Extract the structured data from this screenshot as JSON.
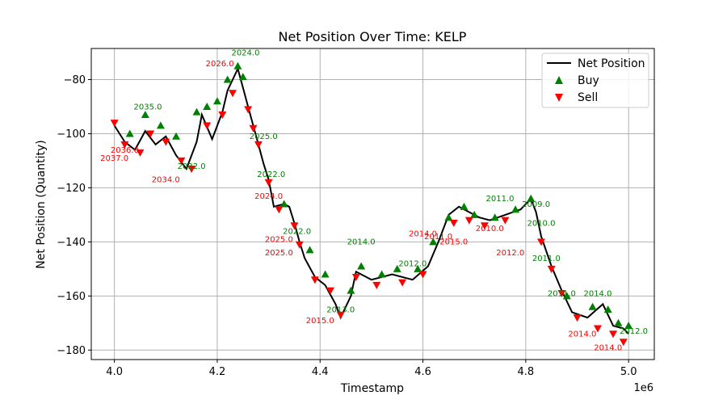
{
  "chart_data": {
    "type": "line",
    "title": "Net Position Over Time: KELP",
    "xlabel": "Timestamp",
    "ylabel": "Net Position (Quantity)",
    "x_offset_label": "1e6",
    "xlim": [
      3.955,
      5.05
    ],
    "ylim": [
      -183.5,
      -68.5
    ],
    "x_unit_scale": 1000000,
    "xticks": [
      4.0,
      4.2,
      4.4,
      4.6,
      4.8,
      5.0
    ],
    "xtick_labels": [
      "4.0",
      "4.2",
      "4.4",
      "4.6",
      "4.8",
      "5.0"
    ],
    "yticks": [
      -80,
      -100,
      -120,
      -140,
      -160,
      -180
    ],
    "ytick_labels": [
      "−80",
      "−100",
      "−120",
      "−140",
      "−160",
      "−180"
    ],
    "grid": true,
    "legend_position": "top-right",
    "colors": {
      "net_position": "#000000",
      "buy": "#008000",
      "sell": "#ff0000"
    },
    "series": [
      {
        "name": "Net Position",
        "kind": "line",
        "points": [
          [
            4.0,
            -97
          ],
          [
            4.02,
            -103
          ],
          [
            4.04,
            -106
          ],
          [
            4.06,
            -99
          ],
          [
            4.08,
            -104
          ],
          [
            4.1,
            -101
          ],
          [
            4.12,
            -108
          ],
          [
            4.14,
            -113
          ],
          [
            4.16,
            -103
          ],
          [
            4.17,
            -93
          ],
          [
            4.19,
            -102
          ],
          [
            4.21,
            -92
          ],
          [
            4.22,
            -84
          ],
          [
            4.24,
            -76
          ],
          [
            4.25,
            -83
          ],
          [
            4.26,
            -90
          ],
          [
            4.27,
            -97
          ],
          [
            4.28,
            -104
          ],
          [
            4.29,
            -111
          ],
          [
            4.3,
            -117
          ],
          [
            4.31,
            -127
          ],
          [
            4.33,
            -126
          ],
          [
            4.34,
            -127
          ],
          [
            4.35,
            -133
          ],
          [
            4.36,
            -140
          ],
          [
            4.37,
            -146
          ],
          [
            4.39,
            -153
          ],
          [
            4.41,
            -156
          ],
          [
            4.43,
            -163
          ],
          [
            4.44,
            -168
          ],
          [
            4.46,
            -160
          ],
          [
            4.47,
            -151
          ],
          [
            4.5,
            -154
          ],
          [
            4.54,
            -152
          ],
          [
            4.58,
            -154
          ],
          [
            4.61,
            -149
          ],
          [
            4.63,
            -140
          ],
          [
            4.65,
            -130
          ],
          [
            4.67,
            -127
          ],
          [
            4.69,
            -129
          ],
          [
            4.71,
            -131
          ],
          [
            4.73,
            -132
          ],
          [
            4.76,
            -130
          ],
          [
            4.79,
            -128
          ],
          [
            4.81,
            -124
          ],
          [
            4.82,
            -129
          ],
          [
            4.83,
            -138
          ],
          [
            4.85,
            -149
          ],
          [
            4.87,
            -158
          ],
          [
            4.89,
            -166
          ],
          [
            4.92,
            -168
          ],
          [
            4.95,
            -163
          ],
          [
            4.97,
            -171
          ],
          [
            4.99,
            -172
          ],
          [
            5.0,
            -174
          ]
        ]
      },
      {
        "name": "Buy",
        "kind": "marker",
        "marker": "triangle-up",
        "points": [
          [
            4.03,
            -100
          ],
          [
            4.06,
            -93
          ],
          [
            4.09,
            -97
          ],
          [
            4.12,
            -101
          ],
          [
            4.16,
            -92
          ],
          [
            4.18,
            -90
          ],
          [
            4.2,
            -88
          ],
          [
            4.22,
            -80
          ],
          [
            4.24,
            -75
          ],
          [
            4.25,
            -79
          ],
          [
            4.33,
            -126
          ],
          [
            4.38,
            -143
          ],
          [
            4.41,
            -152
          ],
          [
            4.46,
            -158
          ],
          [
            4.48,
            -149
          ],
          [
            4.52,
            -152
          ],
          [
            4.55,
            -150
          ],
          [
            4.59,
            -150
          ],
          [
            4.62,
            -140
          ],
          [
            4.65,
            -131
          ],
          [
            4.68,
            -127
          ],
          [
            4.7,
            -130
          ],
          [
            4.74,
            -131
          ],
          [
            4.78,
            -128
          ],
          [
            4.81,
            -124
          ],
          [
            4.88,
            -160
          ],
          [
            4.93,
            -164
          ],
          [
            4.96,
            -165
          ],
          [
            4.98,
            -170
          ],
          [
            5.0,
            -171
          ]
        ]
      },
      {
        "name": "Sell",
        "kind": "marker",
        "marker": "triangle-down",
        "points": [
          [
            4.0,
            -96
          ],
          [
            4.02,
            -104
          ],
          [
            4.05,
            -107
          ],
          [
            4.07,
            -100
          ],
          [
            4.1,
            -103
          ],
          [
            4.13,
            -110
          ],
          [
            4.15,
            -113
          ],
          [
            4.18,
            -97
          ],
          [
            4.21,
            -93
          ],
          [
            4.23,
            -85
          ],
          [
            4.26,
            -91
          ],
          [
            4.27,
            -98
          ],
          [
            4.28,
            -104
          ],
          [
            4.3,
            -118
          ],
          [
            4.32,
            -128
          ],
          [
            4.35,
            -134
          ],
          [
            4.36,
            -141
          ],
          [
            4.39,
            -154
          ],
          [
            4.42,
            -158
          ],
          [
            4.44,
            -167
          ],
          [
            4.47,
            -153
          ],
          [
            4.51,
            -156
          ],
          [
            4.56,
            -155
          ],
          [
            4.6,
            -152
          ],
          [
            4.66,
            -133
          ],
          [
            4.69,
            -132
          ],
          [
            4.72,
            -134
          ],
          [
            4.76,
            -132
          ],
          [
            4.83,
            -140
          ],
          [
            4.85,
            -150
          ],
          [
            4.87,
            -159
          ],
          [
            4.9,
            -168
          ],
          [
            4.94,
            -172
          ],
          [
            4.97,
            -174
          ],
          [
            4.99,
            -177
          ]
        ]
      }
    ],
    "annotations": [
      {
        "text": "2024.0",
        "x": 4.255,
        "y": -71,
        "series": "Buy"
      },
      {
        "text": "2026.0",
        "x": 4.205,
        "y": -75,
        "series": "Sell"
      },
      {
        "text": "2035.0",
        "x": 4.065,
        "y": -91,
        "series": "Buy"
      },
      {
        "text": "2025.0",
        "x": 4.29,
        "y": -102,
        "series": "Buy"
      },
      {
        "text": "2036.0",
        "x": 4.02,
        "y": -107,
        "series": "Sell"
      },
      {
        "text": "2037.0",
        "x": 4.0,
        "y": -110,
        "series": "Sell"
      },
      {
        "text": "2034.0",
        "x": 4.1,
        "y": -118,
        "series": "Sell"
      },
      {
        "text": "2032.0",
        "x": 4.15,
        "y": -113,
        "series": "Buy"
      },
      {
        "text": "2022.0",
        "x": 4.305,
        "y": -116,
        "series": "Buy"
      },
      {
        "text": "2024.0",
        "x": 4.3,
        "y": -124,
        "series": "Sell"
      },
      {
        "text": "2022.0",
        "x": 4.355,
        "y": -137,
        "series": "Buy"
      },
      {
        "text": "2025.0",
        "x": 4.32,
        "y": -140,
        "series": "Sell"
      },
      {
        "text": "2025.0",
        "x": 4.32,
        "y": -145,
        "series": "Sell"
      },
      {
        "text": "2014.0",
        "x": 4.48,
        "y": -141,
        "series": "Buy"
      },
      {
        "text": "2013.0",
        "x": 4.44,
        "y": -166,
        "series": "Buy"
      },
      {
        "text": "2015.0",
        "x": 4.4,
        "y": -170,
        "series": "Sell"
      },
      {
        "text": "2014.0",
        "x": 4.6,
        "y": -138,
        "series": "Sell"
      },
      {
        "text": "2011.0",
        "x": 4.63,
        "y": -139,
        "series": "Sell"
      },
      {
        "text": "2015.0",
        "x": 4.66,
        "y": -141,
        "series": "Sell"
      },
      {
        "text": "2012.0",
        "x": 4.58,
        "y": -149,
        "series": "Buy"
      },
      {
        "text": "2010.0",
        "x": 4.73,
        "y": -136,
        "series": "Sell"
      },
      {
        "text": "2011.0",
        "x": 4.75,
        "y": -125,
        "series": "Buy"
      },
      {
        "text": "2010.0",
        "x": 4.83,
        "y": -134,
        "series": "Buy"
      },
      {
        "text": "2012.0",
        "x": 4.77,
        "y": -145,
        "series": "Sell"
      },
      {
        "text": "2011.0",
        "x": 4.84,
        "y": -147,
        "series": "Buy"
      },
      {
        "text": "2011.0",
        "x": 4.87,
        "y": -160,
        "series": "Buy"
      },
      {
        "text": "2014.0",
        "x": 4.94,
        "y": -160,
        "series": "Buy"
      },
      {
        "text": "2014.0",
        "x": 4.91,
        "y": -175,
        "series": "Sell"
      },
      {
        "text": "2014.0",
        "x": 4.96,
        "y": -180,
        "series": "Sell"
      },
      {
        "text": "2012.0",
        "x": 5.01,
        "y": -174,
        "series": "Buy"
      },
      {
        "text": "2009.0",
        "x": 4.82,
        "y": -127,
        "series": "Buy"
      }
    ]
  },
  "legend": {
    "items": [
      {
        "label": "Net Position",
        "symbol": "line",
        "color": "#000000"
      },
      {
        "label": "Buy",
        "symbol": "triangle-up",
        "color": "#008000"
      },
      {
        "label": "Sell",
        "symbol": "triangle-down",
        "color": "#ff0000"
      }
    ]
  }
}
